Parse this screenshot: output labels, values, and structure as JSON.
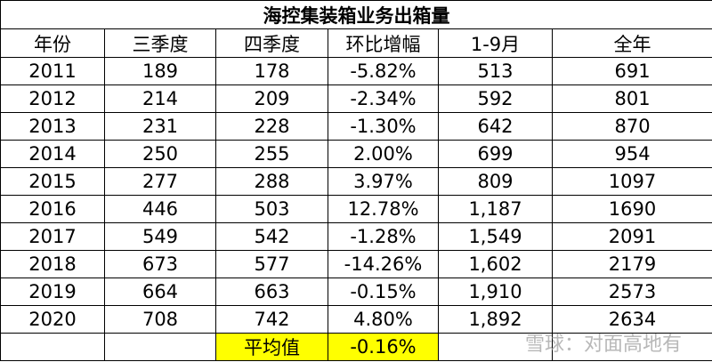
{
  "title": "海控集装箱业务出箱量",
  "header": [
    "年份",
    "三季度",
    "四季度",
    "环比增幅",
    "1-9月",
    "全年"
  ],
  "rows": [
    [
      "2011",
      "189",
      "178",
      "-5.82%",
      "513",
      "691"
    ],
    [
      "2012",
      "214",
      "209",
      "-2.34%",
      "592",
      "801"
    ],
    [
      "2013",
      "231",
      "228",
      "-1.30%",
      "642",
      "870"
    ],
    [
      "2014",
      "250",
      "255",
      "2.00%",
      "699",
      "954"
    ],
    [
      "2015",
      "277",
      "288",
      "3.97%",
      "809",
      "1097"
    ],
    [
      "2016",
      "446",
      "503",
      "12.78%",
      "1,187",
      "1690"
    ],
    [
      "2017",
      "549",
      "542",
      "-1.28%",
      "1,549",
      "2091"
    ],
    [
      "2018",
      "673",
      "577",
      "-14.26%",
      "1,602",
      "2179"
    ],
    [
      "2019",
      "664",
      "663",
      "-0.15%",
      "1,910",
      "2573"
    ],
    [
      "2020",
      "708",
      "742",
      "4.80%",
      "1,892",
      "2634"
    ]
  ],
  "footer": {
    "label": "平均值",
    "value": "-0.16%"
  },
  "watermark": "雪球：对面高地有"
}
